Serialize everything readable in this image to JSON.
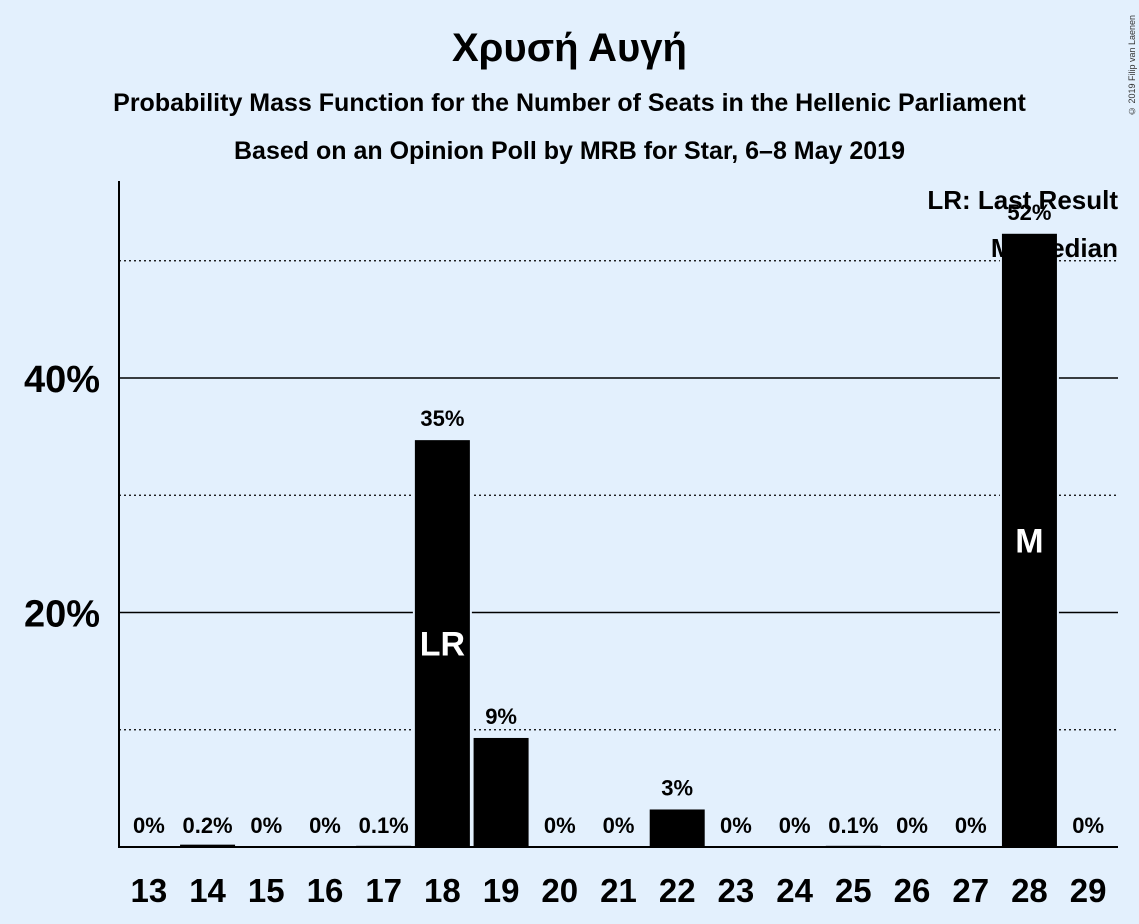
{
  "title": "Χρυσή Αυγή",
  "subtitle": "Probability Mass Function for the Number of Seats in the Hellenic Parliament",
  "subtitle2": "Based on an Opinion Poll by MRB for Star, 6–8 May 2019",
  "copyright": "© 2019 Filip van Laenen",
  "legend": {
    "last_result": "LR: Last Result",
    "median": "M: Median"
  },
  "colors": {
    "background": "#e3f0fd",
    "bar": "#000000",
    "bar_text": "#ffffff"
  },
  "chart_data": {
    "type": "bar",
    "categories": [
      "13",
      "14",
      "15",
      "16",
      "17",
      "18",
      "19",
      "20",
      "21",
      "22",
      "23",
      "24",
      "25",
      "26",
      "27",
      "28",
      "29"
    ],
    "values": [
      0,
      0.2,
      0,
      0,
      0.1,
      34.7,
      9.3,
      0,
      0,
      3.2,
      0,
      0,
      0.1,
      0,
      0,
      52.3,
      0
    ],
    "value_labels": [
      "0%",
      "0.2%",
      "0%",
      "0%",
      "0.1%",
      "35%",
      "9%",
      "0%",
      "0%",
      "3%",
      "0%",
      "0%",
      "0.1%",
      "0%",
      "0%",
      "52%",
      "0%"
    ],
    "bar_markers": {
      "18": "LR",
      "28": "M"
    },
    "yticks": [
      20,
      40
    ],
    "ytick_labels": [
      "20%",
      "40%"
    ],
    "minor_gridlines": [
      10,
      30,
      50
    ],
    "ylim": [
      0,
      56
    ],
    "grid": true,
    "legend_position": "top-right"
  }
}
